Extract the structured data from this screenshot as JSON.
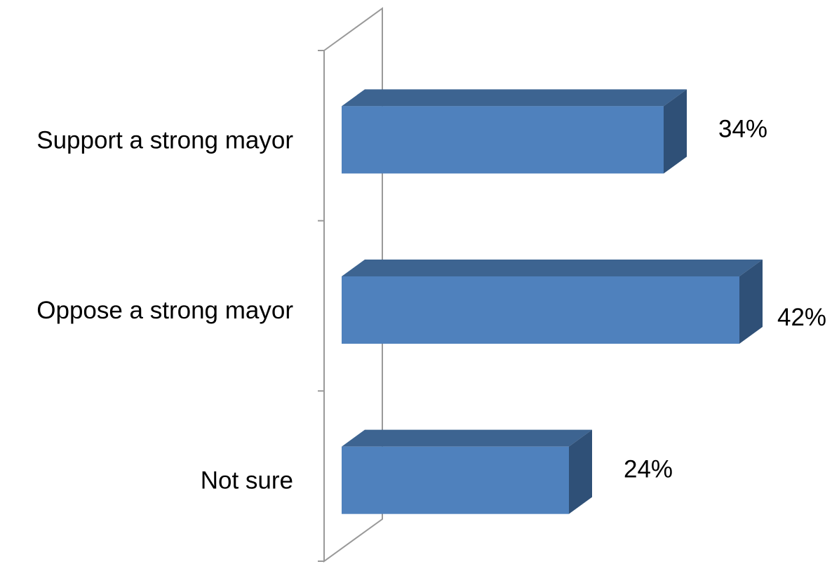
{
  "chart_data": {
    "type": "bar",
    "orientation": "horizontal",
    "style": "3d",
    "categories": [
      "Support a strong mayor",
      "Oppose a strong mayor",
      "Not sure"
    ],
    "values": [
      34,
      42,
      24
    ],
    "value_labels": [
      "34%",
      "42%",
      "24%"
    ],
    "value_unit": "%",
    "xlim": [
      0,
      42
    ],
    "title": "",
    "xlabel": "",
    "ylabel": "",
    "legend": "none",
    "grid": false,
    "colors": {
      "front": "#4f81bd",
      "top": "#3d6491",
      "side": "#2f5077",
      "axis": "#999999"
    }
  }
}
